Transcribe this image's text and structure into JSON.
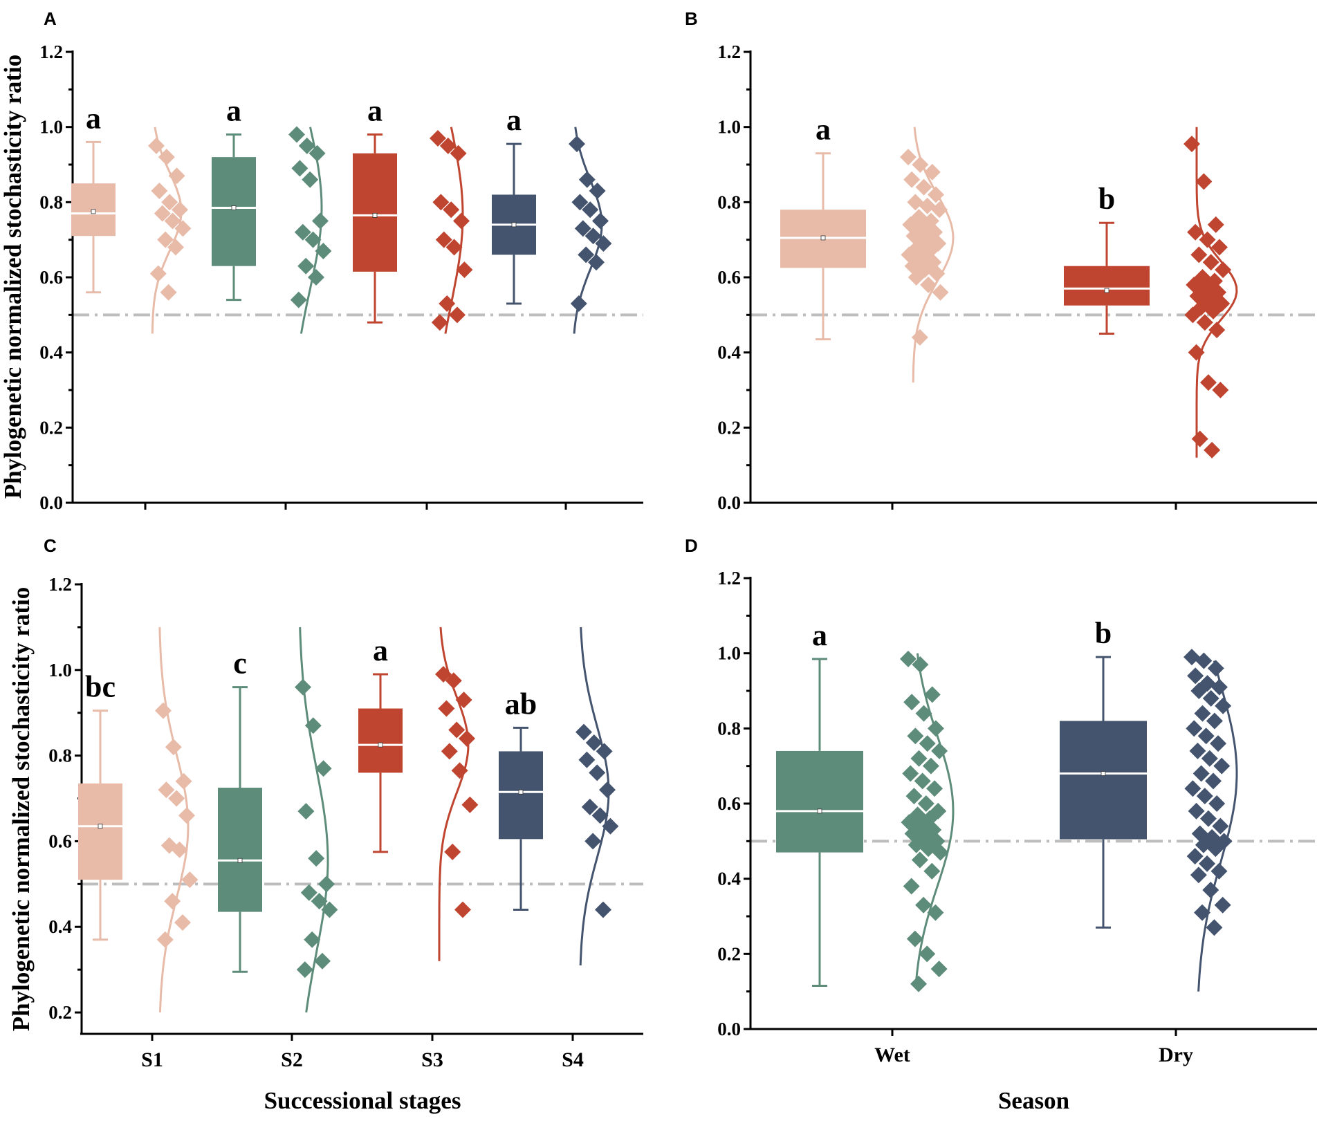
{
  "colors": {
    "pink": "#E8BBA9",
    "green": "#5E8C7A",
    "red": "#BF4530",
    "navy": "#44546E",
    "refline": "#BDBDBD",
    "axis": "#000000"
  },
  "chart_data": [
    {
      "panel": "A",
      "type": "box+scatter+density",
      "xlabel": "",
      "ylabel": "Phylogenetic normalized stochasticity ratio",
      "ylim": [
        0,
        1.2
      ],
      "yticks": [
        "0.0",
        "0.2",
        "0.4",
        "0.6",
        "0.8",
        "1.0",
        "1.2"
      ],
      "reference_line": 0.5,
      "show_category_labels": false,
      "categories": [
        "S1",
        "S2",
        "S3",
        "S4"
      ],
      "series": [
        {
          "name": "S1",
          "color": "pink",
          "min": 0.56,
          "q1": 0.71,
          "median": 0.77,
          "mean": 0.775,
          "q3": 0.85,
          "max": 0.96,
          "letter": "a",
          "curve_range": [
            0.45,
            1.0
          ],
          "points": [
            0.95,
            0.92,
            0.87,
            0.83,
            0.8,
            0.78,
            0.77,
            0.75,
            0.73,
            0.7,
            0.68,
            0.61,
            0.56
          ]
        },
        {
          "name": "S2",
          "color": "green",
          "min": 0.54,
          "q1": 0.63,
          "median": 0.785,
          "mean": 0.785,
          "q3": 0.92,
          "max": 0.98,
          "letter": "a",
          "curve_range": [
            0.45,
            1.0
          ],
          "points": [
            0.98,
            0.95,
            0.93,
            0.89,
            0.86,
            0.75,
            0.72,
            0.7,
            0.67,
            0.63,
            0.6,
            0.54
          ]
        },
        {
          "name": "S3",
          "color": "red",
          "min": 0.48,
          "q1": 0.615,
          "median": 0.765,
          "mean": 0.765,
          "q3": 0.93,
          "max": 0.98,
          "letter": "a",
          "curve_range": [
            0.45,
            1.0
          ],
          "points": [
            0.97,
            0.95,
            0.93,
            0.8,
            0.78,
            0.75,
            0.7,
            0.68,
            0.62,
            0.53,
            0.5,
            0.48
          ]
        },
        {
          "name": "S4",
          "color": "navy",
          "min": 0.53,
          "q1": 0.66,
          "median": 0.74,
          "mean": 0.74,
          "q3": 0.82,
          "max": 0.955,
          "letter": "a",
          "curve_range": [
            0.45,
            1.0
          ],
          "points": [
            0.955,
            0.86,
            0.83,
            0.8,
            0.78,
            0.75,
            0.73,
            0.71,
            0.69,
            0.66,
            0.64,
            0.53
          ]
        }
      ]
    },
    {
      "panel": "B",
      "type": "box+scatter+density",
      "xlabel": "",
      "ylabel": "",
      "ylim": [
        0,
        1.2
      ],
      "yticks": [
        "0.0",
        "0.2",
        "0.4",
        "0.6",
        "0.8",
        "1.0",
        "1.2"
      ],
      "reference_line": 0.5,
      "show_category_labels": false,
      "categories": [
        "Wet",
        "Dry"
      ],
      "series": [
        {
          "name": "Wet",
          "color": "pink",
          "min": 0.435,
          "q1": 0.625,
          "median": 0.705,
          "mean": 0.705,
          "q3": 0.78,
          "max": 0.93,
          "letter": "a",
          "curve_range": [
            0.32,
            1.0
          ],
          "points": [
            0.92,
            0.9,
            0.88,
            0.86,
            0.84,
            0.82,
            0.8,
            0.79,
            0.78,
            0.76,
            0.75,
            0.74,
            0.73,
            0.72,
            0.71,
            0.7,
            0.69,
            0.68,
            0.67,
            0.66,
            0.65,
            0.64,
            0.63,
            0.62,
            0.61,
            0.6,
            0.58,
            0.56,
            0.44
          ]
        },
        {
          "name": "Dry",
          "color": "red",
          "min": 0.45,
          "q1": 0.525,
          "median": 0.57,
          "mean": 0.565,
          "q3": 0.63,
          "max": 0.745,
          "letter": "b",
          "curve_range": [
            0.12,
            1.0
          ],
          "points": [
            0.955,
            0.855,
            0.74,
            0.72,
            0.7,
            0.68,
            0.66,
            0.64,
            0.62,
            0.6,
            0.59,
            0.58,
            0.57,
            0.56,
            0.55,
            0.54,
            0.53,
            0.52,
            0.51,
            0.5,
            0.48,
            0.46,
            0.4,
            0.32,
            0.3,
            0.17,
            0.14
          ]
        }
      ]
    },
    {
      "panel": "C",
      "type": "box+scatter+density",
      "xlabel": "Successional stages",
      "ylabel": "Phylogenetic normalized stochasticity ratio",
      "ylim": [
        0.15,
        1.2
      ],
      "yticks": [
        "0.2",
        "0.4",
        "0.6",
        "0.8",
        "1.0",
        "1.2"
      ],
      "reference_line": 0.5,
      "show_category_labels": true,
      "categories": [
        "S1",
        "S2",
        "S3",
        "S4"
      ],
      "series": [
        {
          "name": "S1",
          "color": "pink",
          "min": 0.37,
          "q1": 0.51,
          "median": 0.635,
          "mean": 0.635,
          "q3": 0.735,
          "max": 0.905,
          "letter": "bc",
          "curve_range": [
            0.2,
            1.1
          ],
          "points": [
            0.905,
            0.82,
            0.74,
            0.72,
            0.7,
            0.66,
            0.59,
            0.58,
            0.51,
            0.46,
            0.41,
            0.37
          ]
        },
        {
          "name": "S2",
          "color": "green",
          "min": 0.295,
          "q1": 0.435,
          "median": 0.555,
          "mean": 0.555,
          "q3": 0.725,
          "max": 0.96,
          "letter": "c",
          "curve_range": [
            0.2,
            1.1
          ],
          "points": [
            0.96,
            0.87,
            0.77,
            0.67,
            0.56,
            0.5,
            0.48,
            0.46,
            0.44,
            0.37,
            0.32,
            0.3
          ]
        },
        {
          "name": "S3",
          "color": "red",
          "min": 0.575,
          "q1": 0.76,
          "median": 0.825,
          "mean": 0.825,
          "q3": 0.91,
          "max": 0.99,
          "letter": "a",
          "curve_range": [
            0.32,
            1.1
          ],
          "points": [
            0.99,
            0.975,
            0.93,
            0.91,
            0.86,
            0.84,
            0.81,
            0.765,
            0.685,
            0.575,
            0.44
          ]
        },
        {
          "name": "S4",
          "color": "navy",
          "min": 0.44,
          "q1": 0.605,
          "median": 0.715,
          "mean": 0.715,
          "q3": 0.81,
          "max": 0.865,
          "letter": "ab",
          "curve_range": [
            0.31,
            1.1
          ],
          "points": [
            0.855,
            0.83,
            0.81,
            0.79,
            0.76,
            0.72,
            0.68,
            0.66,
            0.635,
            0.6,
            0.44
          ]
        }
      ]
    },
    {
      "panel": "D",
      "type": "box+scatter+density",
      "xlabel": "Season",
      "ylabel": "",
      "ylim": [
        0,
        1.2
      ],
      "yticks": [
        "0.0",
        "0.2",
        "0.4",
        "0.6",
        "0.8",
        "1.0",
        "1.2"
      ],
      "reference_line": 0.5,
      "show_category_labels": true,
      "categories": [
        "Wet",
        "Dry"
      ],
      "series": [
        {
          "name": "Wet",
          "color": "green",
          "min": 0.115,
          "q1": 0.47,
          "median": 0.58,
          "mean": 0.58,
          "q3": 0.74,
          "max": 0.985,
          "letter": "a",
          "curve_range": [
            0.12,
            1.0
          ],
          "points": [
            0.985,
            0.97,
            0.89,
            0.87,
            0.84,
            0.8,
            0.78,
            0.76,
            0.74,
            0.72,
            0.7,
            0.68,
            0.66,
            0.64,
            0.62,
            0.6,
            0.58,
            0.57,
            0.56,
            0.55,
            0.54,
            0.53,
            0.52,
            0.51,
            0.5,
            0.49,
            0.48,
            0.47,
            0.45,
            0.42,
            0.38,
            0.33,
            0.31,
            0.24,
            0.2,
            0.16,
            0.12
          ]
        },
        {
          "name": "Dry",
          "color": "navy",
          "min": 0.27,
          "q1": 0.505,
          "median": 0.68,
          "mean": 0.68,
          "q3": 0.82,
          "max": 0.99,
          "letter": "b",
          "curve_range": [
            0.1,
            0.98
          ],
          "points": [
            0.99,
            0.98,
            0.96,
            0.94,
            0.92,
            0.91,
            0.9,
            0.88,
            0.86,
            0.84,
            0.82,
            0.8,
            0.78,
            0.76,
            0.74,
            0.72,
            0.7,
            0.68,
            0.66,
            0.64,
            0.62,
            0.6,
            0.58,
            0.56,
            0.54,
            0.52,
            0.51,
            0.5,
            0.49,
            0.48,
            0.46,
            0.44,
            0.42,
            0.41,
            0.37,
            0.33,
            0.31,
            0.27
          ]
        }
      ]
    }
  ]
}
